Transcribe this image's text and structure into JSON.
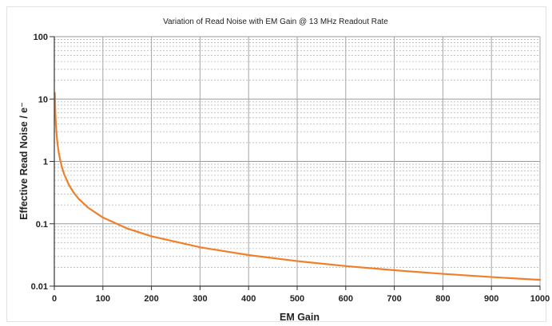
{
  "chart_data": {
    "type": "line",
    "title": "Variation of Read Noise with EM Gain @ 13 MHz Readout Rate",
    "xlabel": "EM Gain",
    "ylabel": "Effective Read Noise / e⁻",
    "xlim": [
      0,
      1000
    ],
    "ylim": [
      0.01,
      100
    ],
    "yscale": "log",
    "grid": true,
    "legend": "none",
    "x_ticks": [
      0,
      100,
      200,
      300,
      400,
      500,
      600,
      700,
      800,
      900,
      1000
    ],
    "y_ticks": [
      0.01,
      0.1,
      1,
      10,
      100
    ],
    "x_tick_labels": [
      "0",
      "100",
      "200",
      "300",
      "400",
      "500",
      "600",
      "700",
      "800",
      "900",
      "1000"
    ],
    "y_tick_labels": [
      "0.01",
      "0.1",
      "1",
      "10",
      "100"
    ],
    "series": [
      {
        "color": "#f07f2a",
        "x": [
          1,
          2,
          3,
          5,
          7,
          10,
          15,
          20,
          30,
          40,
          50,
          70,
          100,
          150,
          200,
          300,
          400,
          500,
          600,
          700,
          800,
          900,
          1000
        ],
        "y": [
          12.6,
          6.3,
          4.2,
          2.52,
          1.8,
          1.26,
          0.84,
          0.63,
          0.42,
          0.315,
          0.252,
          0.18,
          0.126,
          0.084,
          0.063,
          0.042,
          0.0315,
          0.0252,
          0.021,
          0.018,
          0.01575,
          0.014,
          0.0126
        ]
      }
    ]
  }
}
